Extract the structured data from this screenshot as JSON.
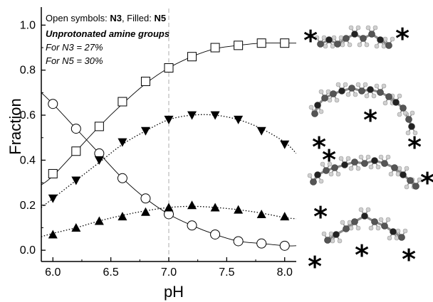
{
  "chart_data": {
    "type": "scatter",
    "xlabel": "pH",
    "ylabel": "Fraction",
    "xlim": [
      5.9,
      8.1
    ],
    "ylim": [
      -0.05,
      1.08
    ],
    "x_ticks": [
      "6.0",
      "6.5",
      "7.0",
      "7.5",
      "8.0"
    ],
    "y_ticks": [
      "0.0",
      "0.2",
      "0.4",
      "0.6",
      "0.8",
      "1.0"
    ],
    "reference_line_x": 7.0,
    "annotations": {
      "line1_prefix": "Open symbols: ",
      "line1_n3": "N3",
      "line1_mid": ", Filled: ",
      "line1_n5": "N5",
      "line2": "Unprotonated amine groups",
      "line3": "For N3 = 27%",
      "line4": "For N5 = 30%"
    },
    "series": [
      {
        "marker": "open-square",
        "x": [
          6.0,
          6.2,
          6.4,
          6.6,
          6.8,
          7.0,
          7.2,
          7.4,
          7.6,
          7.8,
          8.0
        ],
        "y": [
          0.34,
          0.44,
          0.55,
          0.66,
          0.75,
          0.81,
          0.86,
          0.9,
          0.91,
          0.92,
          0.92
        ]
      },
      {
        "marker": "open-circle",
        "x": [
          6.0,
          6.2,
          6.4,
          6.6,
          6.8,
          7.0,
          7.2,
          7.4,
          7.6,
          7.8,
          8.0
        ],
        "y": [
          0.65,
          0.54,
          0.43,
          0.32,
          0.23,
          0.16,
          0.11,
          0.07,
          0.04,
          0.03,
          0.02
        ]
      },
      {
        "marker": "filled-down-triangle",
        "x": [
          6.0,
          6.2,
          6.4,
          6.6,
          6.8,
          7.0,
          7.2,
          7.4,
          7.6,
          7.8,
          8.0
        ],
        "y": [
          0.23,
          0.31,
          0.4,
          0.48,
          0.53,
          0.58,
          0.6,
          0.6,
          0.58,
          0.53,
          0.47
        ]
      },
      {
        "marker": "filled-up-triangle",
        "x": [
          6.0,
          6.2,
          6.4,
          6.6,
          6.8,
          7.0,
          7.2,
          7.4,
          7.6,
          7.8,
          8.0
        ],
        "y": [
          0.07,
          0.1,
          0.13,
          0.15,
          0.17,
          0.19,
          0.2,
          0.19,
          0.18,
          0.16,
          0.15
        ]
      }
    ],
    "fit_curves": [
      {
        "style": "solid",
        "x": [
          5.9,
          6.0,
          6.2,
          6.4,
          6.6,
          6.8,
          7.0,
          7.2,
          7.4,
          7.6,
          7.8,
          8.0,
          8.1
        ],
        "y": [
          0.29,
          0.33,
          0.44,
          0.55,
          0.65,
          0.74,
          0.81,
          0.86,
          0.895,
          0.91,
          0.92,
          0.92,
          0.92
        ]
      },
      {
        "style": "solid",
        "x": [
          5.9,
          6.0,
          6.2,
          6.4,
          6.6,
          6.8,
          7.0,
          7.2,
          7.4,
          7.6,
          7.8,
          8.0,
          8.1
        ],
        "y": [
          0.7,
          0.65,
          0.54,
          0.43,
          0.32,
          0.23,
          0.16,
          0.11,
          0.07,
          0.04,
          0.03,
          0.02,
          0.02
        ]
      },
      {
        "style": "dotted",
        "x": [
          5.9,
          6.0,
          6.2,
          6.4,
          6.6,
          6.8,
          7.0,
          7.2,
          7.4,
          7.6,
          7.8,
          8.0,
          8.1
        ],
        "y": [
          0.19,
          0.23,
          0.31,
          0.39,
          0.47,
          0.53,
          0.58,
          0.6,
          0.6,
          0.58,
          0.54,
          0.48,
          0.43
        ]
      },
      {
        "style": "dotted",
        "x": [
          5.9,
          6.0,
          6.2,
          6.4,
          6.6,
          6.8,
          7.0,
          7.2,
          7.4,
          7.6,
          7.8,
          8.0,
          8.1
        ],
        "y": [
          0.06,
          0.075,
          0.1,
          0.13,
          0.155,
          0.175,
          0.19,
          0.195,
          0.19,
          0.18,
          0.165,
          0.145,
          0.14
        ]
      }
    ],
    "structure_marker": "*",
    "colors": {
      "axis": "#000000",
      "reference_line": "#bbbbbb",
      "atom_carbon": "#555555",
      "atom_nitrogen": "#222222",
      "atom_hydrogen": "#d0d0d0",
      "bond": "#8a8a8a"
    }
  }
}
